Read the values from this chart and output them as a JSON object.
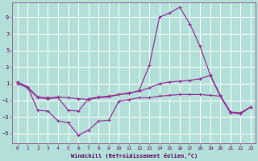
{
  "xlabel": "Windchill (Refroidissement éolien,°C)",
  "ylabel": "",
  "background_color": "#b8e8e0",
  "grid_color": "#aaddcc",
  "line_color": "#993399",
  "xlim": [
    -0.5,
    23.5
  ],
  "ylim": [
    -6.2,
    10.8
  ],
  "yticks": [
    -5,
    -3,
    -1,
    1,
    3,
    5,
    7,
    9
  ],
  "xticks": [
    0,
    1,
    2,
    3,
    4,
    5,
    6,
    7,
    8,
    9,
    10,
    11,
    12,
    13,
    14,
    15,
    16,
    17,
    18,
    19,
    20,
    21,
    22,
    23
  ],
  "line1_y": [
    1.2,
    0.6,
    -0.6,
    -0.7,
    -0.6,
    -0.7,
    -0.8,
    -0.9,
    -0.7,
    -0.6,
    -0.3,
    -0.2,
    0.2,
    3.2,
    9.0,
    9.5,
    10.2,
    8.2,
    5.5,
    2.1,
    -0.4,
    -2.4,
    -2.5,
    -1.8
  ],
  "line2_y": [
    1.0,
    0.5,
    -0.7,
    -0.8,
    -0.7,
    -2.2,
    -2.3,
    -0.8,
    -0.6,
    -0.5,
    -0.3,
    -0.1,
    0.1,
    0.5,
    1.0,
    1.2,
    1.3,
    1.4,
    1.6,
    2.0,
    -0.5,
    -2.5,
    -2.6,
    -1.8
  ],
  "line3_y": [
    1.2,
    0.6,
    -2.2,
    -2.3,
    -3.5,
    -3.7,
    -5.2,
    -4.6,
    -3.5,
    -3.4,
    -1.1,
    -0.9,
    -0.7,
    -0.7,
    -0.5,
    -0.4,
    -0.3,
    -0.3,
    -0.3,
    -0.4,
    -0.5,
    -2.5,
    -2.6,
    -1.8
  ],
  "figsize": [
    3.2,
    2.0
  ],
  "dpi": 100
}
